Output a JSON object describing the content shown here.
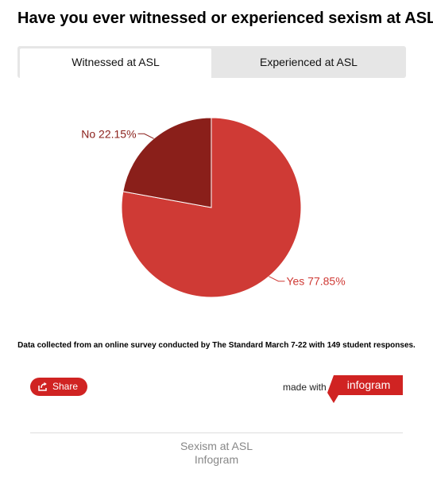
{
  "title": "Have you ever witnessed or experienced sexism at ASL?",
  "tabs": [
    {
      "label": "Witnessed at ASL",
      "active": true
    },
    {
      "label": "Experienced at ASL",
      "active": false
    }
  ],
  "chart_data": {
    "type": "pie",
    "title": "",
    "slices": [
      {
        "label": "Yes",
        "value": 77.85,
        "display": "Yes 77.85%",
        "color": "#cf3a35"
      },
      {
        "label": "No",
        "value": 22.15,
        "display": "No 22.15%",
        "color": "#8a1f1a"
      }
    ]
  },
  "footnote": "Data collected from an online survey conducted by The Standard March 7-22 with 149 student responses.",
  "share": {
    "label": "Share"
  },
  "made_with": "made with",
  "brand": {
    "name": "infogram",
    "color": "#d02322"
  },
  "caption": {
    "line1": "Sexism at ASL",
    "line2": "Infogram"
  }
}
